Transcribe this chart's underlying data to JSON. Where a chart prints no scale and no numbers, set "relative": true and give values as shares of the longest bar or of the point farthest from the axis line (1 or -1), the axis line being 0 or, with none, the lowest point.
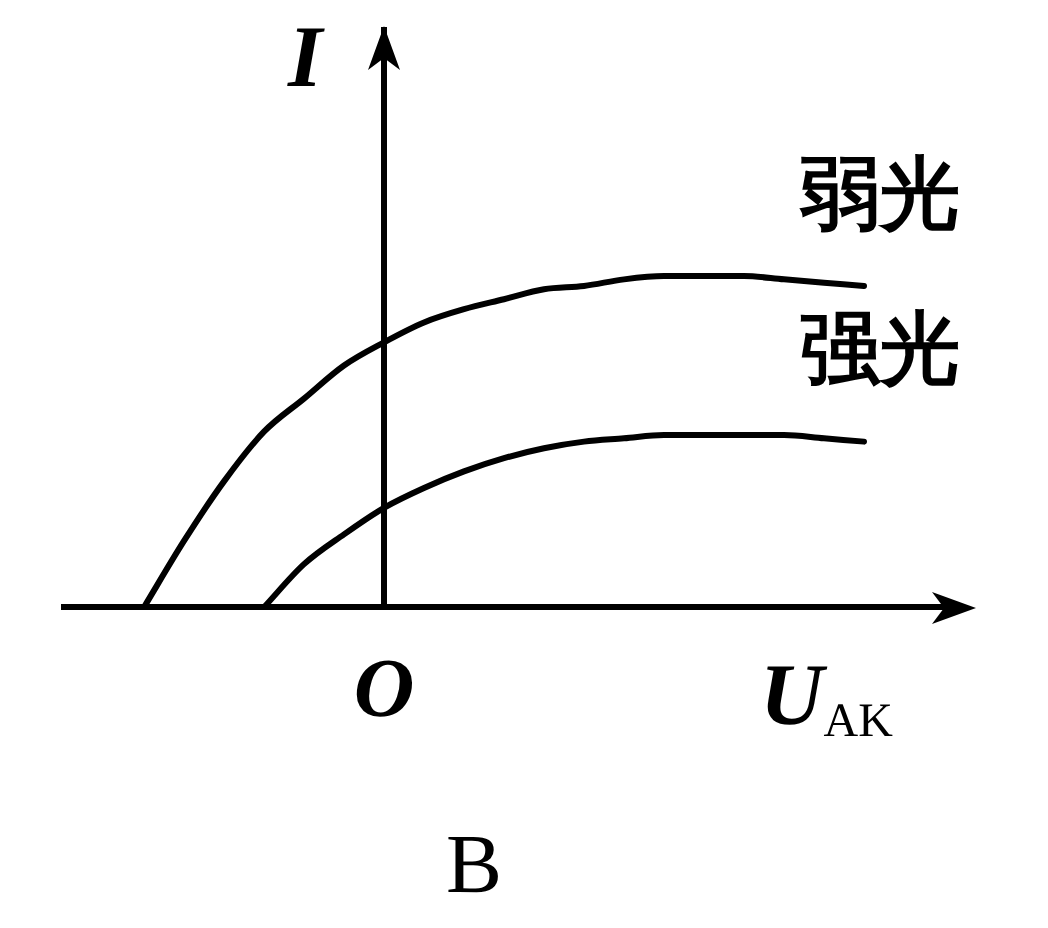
{
  "chart_data": {
    "type": "line",
    "relative": true,
    "xlabel": "U$_{AK}$",
    "ylabel": "I",
    "annotations": [
      "O",
      "B"
    ],
    "grid": false,
    "legend": false,
    "tick_labels": "x",
    "marker": "none",
    "categories": [
      null,
      null,
      null,
      null,
      null,
      null,
      null,
      null,
      null,
      null,
      null,
      null,
      null,
      null,
      null,
      null,
      null,
      null,
      null,
      null,
      null,
      null,
      null
    ],
    "series": [
      {
        "name": "弱光",
        "color": "#000000",
        "values": [
          null,
          null,
          0,
          0.2,
          0.38,
          0.53,
          0.63,
          0.73,
          0.8,
          0.86,
          0.9,
          0.93,
          0.96,
          0.97,
          0.99,
          1,
          1,
          1,
          0.99,
          0.98,
          0.97,
          null,
          null
        ]
      },
      {
        "name": "强光",
        "color": "#000000",
        "values": [
          null,
          null,
          null,
          null,
          null,
          0,
          0.13,
          0.22,
          0.3,
          0.36,
          0.41,
          0.45,
          0.48,
          0.5,
          0.51,
          0.52,
          0.52,
          0.52,
          0.52,
          0.51,
          0.5,
          null,
          null
        ]
      }
    ]
  }
}
